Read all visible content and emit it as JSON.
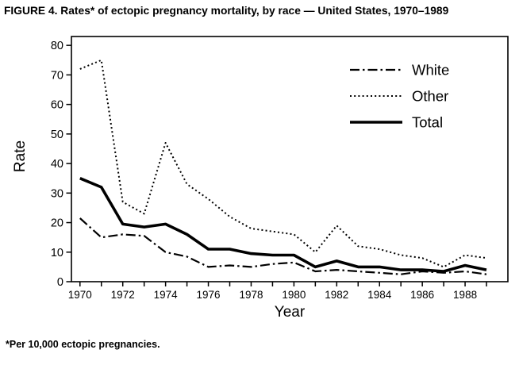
{
  "chart_data": {
    "type": "line",
    "title": "FIGURE 4. Rates* of ectopic pregnancy mortality, by race — United States, 1970–1989",
    "footnote": "*Per 10,000 ectopic pregnancies.",
    "xlabel": "Year",
    "ylabel": "Rate",
    "x": [
      1970,
      1971,
      1972,
      1973,
      1974,
      1975,
      1976,
      1977,
      1978,
      1979,
      1980,
      1981,
      1982,
      1983,
      1984,
      1985,
      1986,
      1987,
      1988,
      1989
    ],
    "x_tick_labels": [
      1970,
      1972,
      1974,
      1976,
      1978,
      1980,
      1982,
      1984,
      1986,
      1988
    ],
    "y_ticks": [
      0,
      10,
      20,
      30,
      40,
      50,
      60,
      70,
      80
    ],
    "ylim": [
      0,
      80
    ],
    "grid": false,
    "legend_position": "upper-right",
    "line_color": "#000000",
    "background_color": "#ffffff",
    "series": [
      {
        "name": "White",
        "style": "dashdot",
        "width": 2.2,
        "values": [
          21.5,
          15,
          16,
          15.5,
          10,
          8.5,
          5,
          5.5,
          5,
          6,
          6.5,
          3.5,
          4,
          3.5,
          3,
          2.5,
          3.5,
          3,
          3.5,
          2.5
        ]
      },
      {
        "name": "Other",
        "style": "dotted",
        "width": 2,
        "values": [
          72,
          75,
          27,
          23,
          47,
          33,
          28,
          22,
          18,
          17,
          16,
          10,
          19,
          12,
          11,
          9,
          8,
          5,
          9,
          8
        ]
      },
      {
        "name": "Total",
        "style": "solid",
        "width": 3.6,
        "values": [
          35,
          32,
          19.5,
          18.5,
          19.5,
          16,
          11,
          11,
          9.5,
          9,
          9,
          5,
          7,
          5,
          5,
          4,
          4,
          3.5,
          5.5,
          4
        ]
      }
    ]
  }
}
